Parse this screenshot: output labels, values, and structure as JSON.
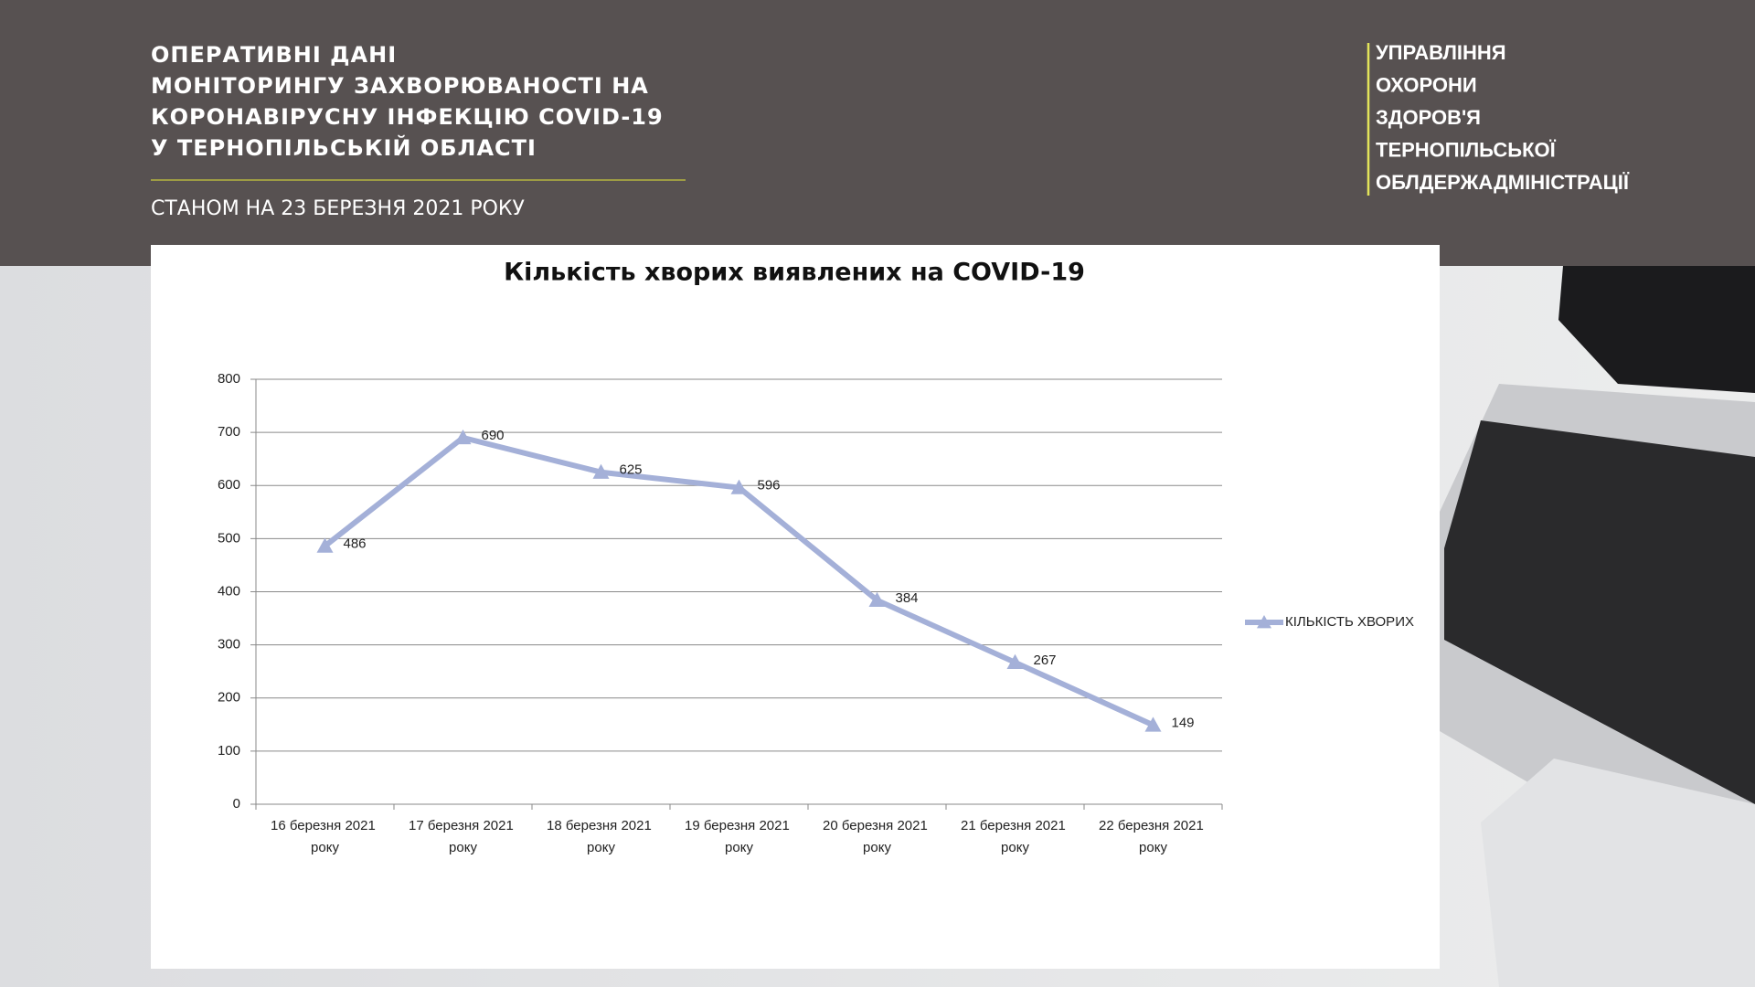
{
  "header": {
    "title_lines": [
      "ОПЕРАТИВНІ ДАНІ",
      "МОНІТОРИНГУ ЗАХВОРЮВАНОСТІ НА",
      "КОРОНАВІРУСНУ ІНФЕКЦІЮ  COVID-19",
      "У ТЕРНОПІЛЬСЬКІЙ ОБЛАСТІ"
    ],
    "subtitle": "СТАНОМ НА 23 БЕРЕЗНЯ 2021 РОКУ",
    "organization_lines": [
      "УПРАВЛІННЯ",
      "ОХОРОНИ",
      "ЗДОРОВ'Я",
      "ТЕРНОПІЛЬСЬКОЇ",
      "ОБЛДЕРЖАДМІНІСТРАЦІЇ"
    ]
  },
  "chart_data": {
    "type": "line",
    "title": "Кількість хворих виявлених на COVID-19",
    "categories": [
      "16 березня 2021 року",
      "17 березня 2021 року",
      "18 березня 2021 року",
      "19 березня 2021 року",
      "20 березня 2021 року",
      "21 березня 2021 року",
      "22 березня 2021 року"
    ],
    "series": [
      {
        "name": "КІЛЬКІСТЬ ХВОРИХ",
        "color": "#a4b0d8",
        "values": [
          486,
          690,
          625,
          596,
          384,
          267,
          149
        ]
      }
    ],
    "ylim": [
      0,
      800
    ],
    "yticks": [
      0,
      100,
      200,
      300,
      400,
      500,
      600,
      700,
      800
    ],
    "grid": true,
    "legend": "right"
  }
}
